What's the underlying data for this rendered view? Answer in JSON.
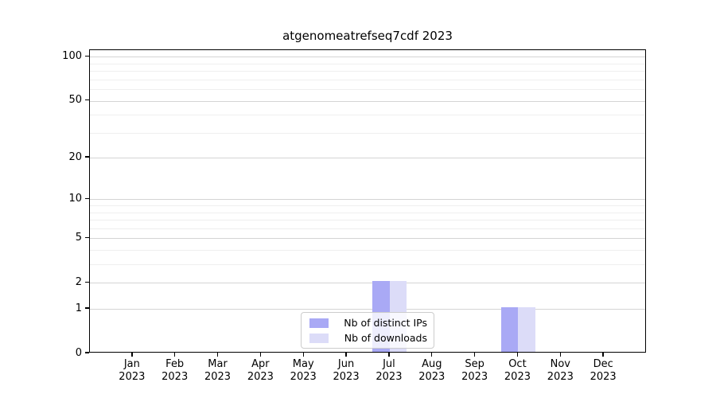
{
  "chart_data": {
    "type": "bar",
    "title": "atgenomeatrefseq7cdf 2023",
    "categories": [
      "Jan",
      "Feb",
      "Mar",
      "Apr",
      "May",
      "Jun",
      "Jul",
      "Aug",
      "Sep",
      "Oct",
      "Nov",
      "Dec"
    ],
    "tick_year": "2023",
    "series": [
      {
        "name": "Nb of distinct IPs",
        "color": "#a9a9f5",
        "values": [
          0,
          0,
          0,
          0,
          0,
          0,
          2,
          0,
          0,
          1,
          0,
          0
        ]
      },
      {
        "name": "Nb of downloads",
        "color": "#dcdcf8",
        "values": [
          0,
          0,
          0,
          0,
          0,
          0,
          2,
          0,
          0,
          1,
          0,
          0
        ]
      }
    ],
    "xlabel": "",
    "ylabel": "",
    "yscale": "log1p",
    "ylim": [
      0,
      111
    ],
    "xlim": [
      -1,
      12
    ],
    "yticks": [
      0,
      1,
      2,
      5,
      10,
      20,
      50,
      100
    ],
    "yticks_minor": [
      3,
      4,
      6,
      7,
      8,
      9,
      30,
      40,
      60,
      70,
      80,
      90
    ],
    "bar_width_fraction": 0.4,
    "grid": "horizontal-major-and-minor",
    "legend_position": "lower center"
  },
  "colors": {
    "grid_major": "#d4d4d4",
    "grid_minor": "#efefef",
    "spine": "#000000",
    "background": "#ffffff"
  }
}
